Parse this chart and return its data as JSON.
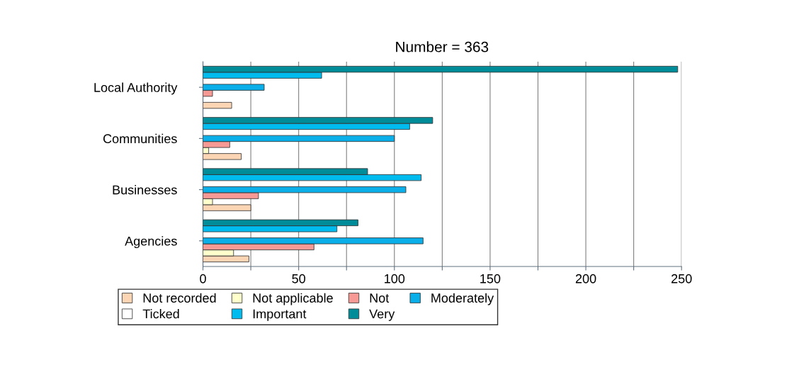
{
  "chart_data": {
    "type": "bar",
    "orientation": "horizontal",
    "title": "Number = 363",
    "categories": [
      "Local Authority",
      "Communities",
      "Businesses",
      "Agencies"
    ],
    "series": [
      {
        "name": "Not recorded",
        "color": "#fcd5b4",
        "values": [
          15,
          20,
          25,
          24
        ]
      },
      {
        "name": "Not applicable",
        "color": "#ffffcc",
        "values": [
          null,
          3,
          5,
          16
        ]
      },
      {
        "name": "Not",
        "color": "#f79a96",
        "values": [
          5,
          14,
          29,
          58
        ]
      },
      {
        "name": "Moderately",
        "color": "#0aaee8",
        "values": [
          32,
          100,
          106,
          115
        ]
      },
      {
        "name": "Ticked",
        "color": "#ffffff",
        "values": [
          null,
          null,
          null,
          null
        ]
      },
      {
        "name": "Important",
        "color": "#00bbee",
        "values": [
          62,
          108,
          114,
          70
        ]
      },
      {
        "name": "Very",
        "color": "#008c99",
        "values": [
          248,
          120,
          86,
          81
        ]
      }
    ],
    "xlim": [
      0,
      250
    ],
    "xticks": [
      0,
      {
        "value": 25,
        "label": null
      },
      50,
      {
        "value": 75,
        "label": null
      },
      100,
      {
        "value": 125,
        "label": null
      },
      150,
      {
        "value": 175,
        "label": null
      },
      200,
      {
        "value": 225,
        "label": null
      },
      250
    ],
    "grid": "x",
    "legend": "bottom"
  }
}
